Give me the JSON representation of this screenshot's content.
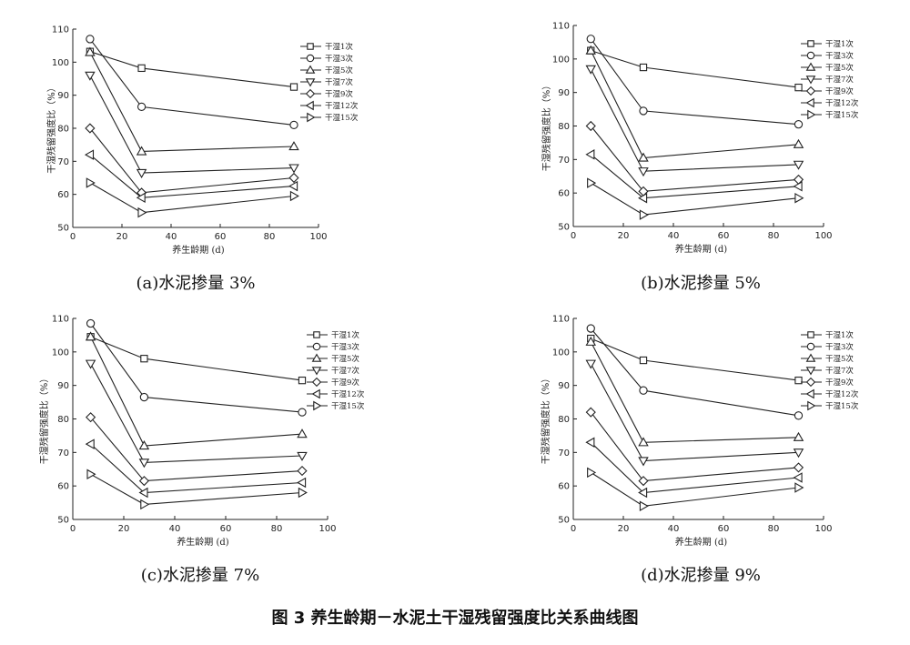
{
  "figure_title": "图 3   养生龄期－水泥土干湿残留强度比关系曲线图",
  "chart_data": [
    {
      "type": "line",
      "caption": "(a)水泥掺量 3%",
      "xlabel": "养生龄期 (d)",
      "ylabel": "干湿残留强度比（%）",
      "xlim": [
        0,
        100
      ],
      "ylim": [
        50,
        110
      ],
      "xticks": [
        "0",
        "20",
        "40",
        "60",
        "80",
        "100"
      ],
      "yticks": [
        "50",
        "60",
        "70",
        "80",
        "90",
        "100",
        "110"
      ],
      "legend_position": "top-right",
      "x": [
        7,
        28,
        90
      ],
      "series": [
        {
          "name": "干湿1次",
          "marker": "square",
          "values": [
            103.2,
            98.2,
            92.5
          ]
        },
        {
          "name": "干湿3次",
          "marker": "circle",
          "values": [
            107.0,
            86.5,
            81.0
          ]
        },
        {
          "name": "干湿5次",
          "marker": "triangle-up",
          "values": [
            103.0,
            73.0,
            74.5
          ]
        },
        {
          "name": "干湿7次",
          "marker": "triangle-down",
          "values": [
            96.0,
            66.5,
            68.0
          ]
        },
        {
          "name": "干湿9次",
          "marker": "diamond",
          "values": [
            80.0,
            60.5,
            65.0
          ]
        },
        {
          "name": "干湿12次",
          "marker": "triangle-left",
          "values": [
            72.0,
            59.0,
            62.5
          ]
        },
        {
          "name": "干湿15次",
          "marker": "triangle-right",
          "values": [
            63.5,
            54.5,
            59.5
          ]
        }
      ]
    },
    {
      "type": "line",
      "caption": "(b)水泥掺量 5%",
      "xlabel": "养生龄期 (d)",
      "ylabel": "干湿残留强度比（%）",
      "xlim": [
        0,
        100
      ],
      "ylim": [
        50,
        110
      ],
      "xticks": [
        "0",
        "20",
        "40",
        "60",
        "80",
        "100"
      ],
      "yticks": [
        "50",
        "60",
        "70",
        "80",
        "90",
        "100",
        "110"
      ],
      "legend_position": "top-right",
      "x": [
        7,
        28,
        90
      ],
      "series": [
        {
          "name": "干湿1次",
          "marker": "square",
          "values": [
            102.5,
            97.5,
            91.5
          ]
        },
        {
          "name": "干湿3次",
          "marker": "circle",
          "values": [
            106.0,
            84.5,
            80.5
          ]
        },
        {
          "name": "干湿5次",
          "marker": "triangle-up",
          "values": [
            102.5,
            70.5,
            74.5
          ]
        },
        {
          "name": "干湿7次",
          "marker": "triangle-down",
          "values": [
            97.0,
            66.5,
            68.5
          ]
        },
        {
          "name": "干湿9次",
          "marker": "diamond",
          "values": [
            80.0,
            60.5,
            64.0
          ]
        },
        {
          "name": "干湿12次",
          "marker": "triangle-left",
          "values": [
            71.5,
            58.5,
            62.0
          ]
        },
        {
          "name": "干湿15次",
          "marker": "triangle-right",
          "values": [
            63.0,
            53.5,
            58.5
          ]
        }
      ]
    },
    {
      "type": "line",
      "caption": "(c)水泥掺量 7%",
      "xlabel": "养生龄期 (d)",
      "ylabel": "干湿残留强度比（%）",
      "xlim": [
        0,
        100
      ],
      "ylim": [
        50,
        110
      ],
      "xticks": [
        "0",
        "20",
        "40",
        "60",
        "80",
        "100"
      ],
      "yticks": [
        "50",
        "60",
        "70",
        "80",
        "90",
        "100",
        "110"
      ],
      "legend_position": "top-right",
      "x": [
        7,
        28,
        90
      ],
      "series": [
        {
          "name": "干湿1次",
          "marker": "square",
          "values": [
            104.5,
            98.0,
            91.5
          ]
        },
        {
          "name": "干湿3次",
          "marker": "circle",
          "values": [
            108.5,
            86.5,
            82.0
          ]
        },
        {
          "name": "干湿5次",
          "marker": "triangle-up",
          "values": [
            104.5,
            72.0,
            75.5
          ]
        },
        {
          "name": "干湿7次",
          "marker": "triangle-down",
          "values": [
            96.5,
            67.0,
            69.0
          ]
        },
        {
          "name": "干湿9次",
          "marker": "diamond",
          "values": [
            80.5,
            61.5,
            64.5
          ]
        },
        {
          "name": "干湿12次",
          "marker": "triangle-left",
          "values": [
            72.5,
            58.0,
            61.0
          ]
        },
        {
          "name": "干湿15次",
          "marker": "triangle-right",
          "values": [
            63.5,
            54.5,
            58.0
          ]
        }
      ]
    },
    {
      "type": "line",
      "caption": "(d)水泥掺量 9%",
      "xlabel": "养生龄期 (d)",
      "ylabel": "干湿残留强度比（%）",
      "xlim": [
        0,
        100
      ],
      "ylim": [
        50,
        110
      ],
      "xticks": [
        "0",
        "20",
        "40",
        "60",
        "80",
        "100"
      ],
      "yticks": [
        "50",
        "60",
        "70",
        "80",
        "90",
        "100",
        "110"
      ],
      "legend_position": "top-right",
      "x": [
        7,
        28,
        90
      ],
      "series": [
        {
          "name": "干湿1次",
          "marker": "square",
          "values": [
            104.0,
            97.5,
            91.5
          ]
        },
        {
          "name": "干湿3次",
          "marker": "circle",
          "values": [
            107.0,
            88.5,
            81.0
          ]
        },
        {
          "name": "干湿5次",
          "marker": "triangle-up",
          "values": [
            103.0,
            73.0,
            74.5
          ]
        },
        {
          "name": "干湿7次",
          "marker": "triangle-down",
          "values": [
            96.5,
            67.5,
            70.0
          ]
        },
        {
          "name": "干湿9次",
          "marker": "diamond",
          "values": [
            82.0,
            61.5,
            65.5
          ]
        },
        {
          "name": "干湿12次",
          "marker": "triangle-left",
          "values": [
            73.0,
            58.0,
            62.5
          ]
        },
        {
          "name": "干湿15次",
          "marker": "triangle-right",
          "values": [
            64.0,
            54.0,
            59.5
          ]
        }
      ]
    }
  ]
}
